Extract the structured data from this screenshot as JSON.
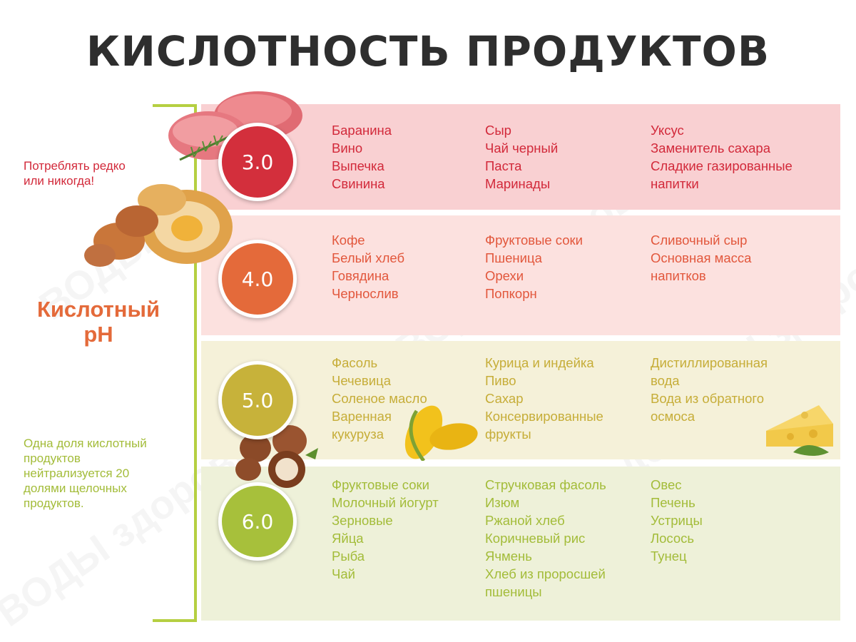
{
  "title": "КИСЛОТНОСТЬ ПРОДУКТОВ",
  "watermark": "ВОДЫ здоровья",
  "side": {
    "warning": [
      "Потреблять редко",
      "или никогда!"
    ],
    "acid_label": [
      "Кислотный",
      "pH"
    ],
    "note": [
      "Одна доля кислотный",
      "продуктов",
      "нейтрализуется 20",
      "долями щелочных",
      "продуктов."
    ]
  },
  "colors": {
    "band_3": "#f9d0d2",
    "band_4": "#fce1df",
    "band_5": "#f5f1d9",
    "band_6": "#eef1d9",
    "circle_3": "#d32f3c",
    "circle_4": "#e46a3a",
    "circle_5": "#c7b23a",
    "circle_6": "#a7c03b",
    "text_3": "#d2293a",
    "text_4": "#e2573c",
    "text_5": "#c6ad38",
    "text_6": "#a3bc39",
    "side_warning": "#d2293a",
    "side_note": "#a3bc39",
    "axis": "#b5cf41"
  },
  "levels": [
    {
      "ph": "3.0",
      "col1": [
        "Баранина",
        "Вино",
        "Выпечка",
        "Свинина"
      ],
      "col2": [
        "Сыр",
        "Чай черный",
        "Паста",
        "Маринады"
      ],
      "col3": [
        "Уксус",
        "Заменитель сахара",
        "Сладкие газированные",
        "напитки"
      ]
    },
    {
      "ph": "4.0",
      "col1": [
        "Кофе",
        "Белый хлеб",
        "Говядина",
        "Чернослив"
      ],
      "col2": [
        "Фруктовые соки",
        "Пшеница",
        "Орехи",
        "Попкорн"
      ],
      "col3": [
        "Сливочный сыр",
        "Основная масса",
        "напитков"
      ]
    },
    {
      "ph": "5.0",
      "col1": [
        "Фасоль",
        "Чечевица",
        "Соленое масло",
        "Варенная",
        "кукуруза"
      ],
      "col2": [
        "Курица и индейка",
        "Пиво",
        "Сахар",
        "Консервированные",
        "фрукты"
      ],
      "col3": [
        "Дистиллированная",
        "вода",
        "Вода из обратного",
        "осмоса"
      ]
    },
    {
      "ph": "6.0",
      "col1": [
        "Фруктовые соки",
        "Молочный йогурт",
        "Зерновые",
        "Яйца",
        "Рыба",
        "Чай"
      ],
      "col2": [
        "Стручковая фасоль",
        "Изюм",
        "Ржаной хлеб",
        "Коричневый рис",
        "Ячмень",
        "Хлеб из проросшей",
        "пшеницы"
      ],
      "col3": [
        "Овес",
        "Печень",
        "Устрицы",
        "Лосось",
        "Тунец"
      ]
    }
  ]
}
